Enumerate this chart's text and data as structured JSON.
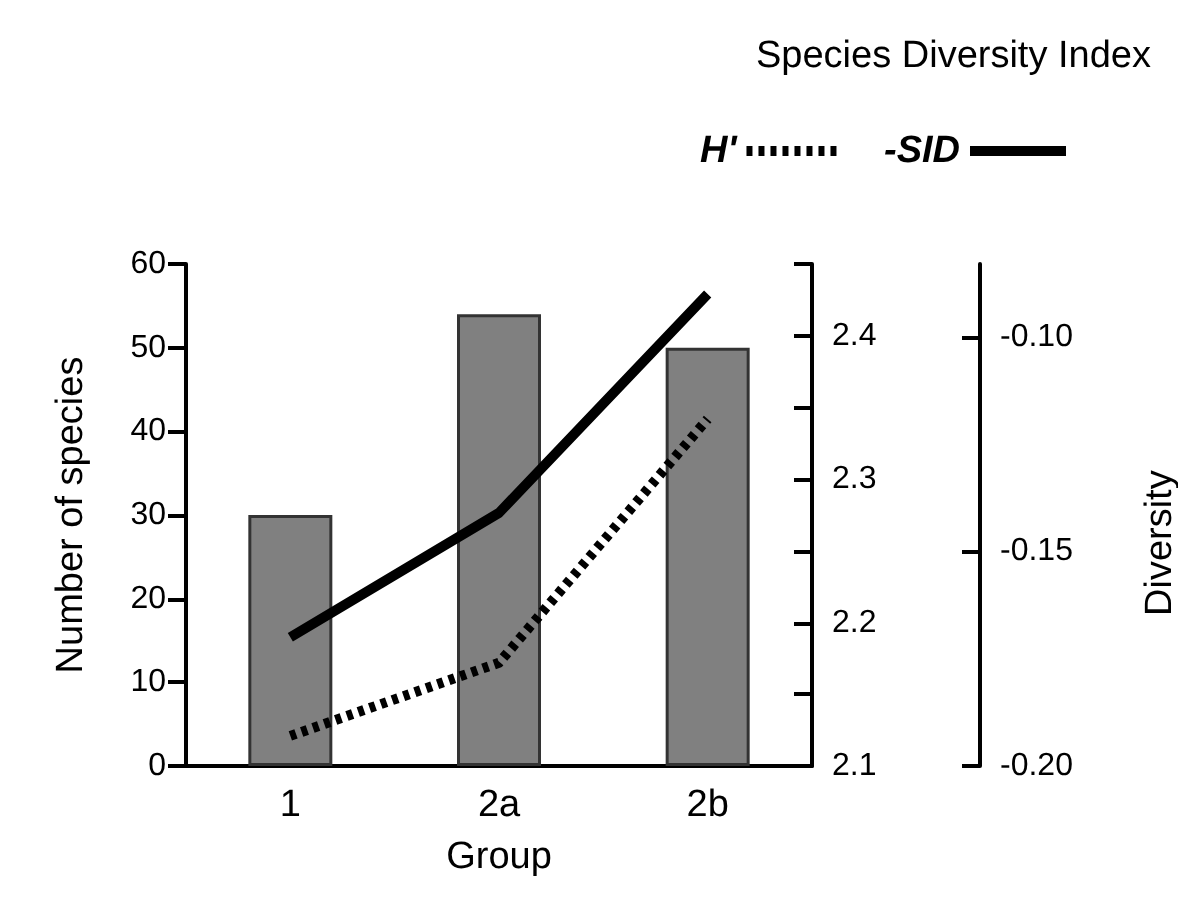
{
  "chart_data": {
    "type": "bar",
    "categories": [
      "1",
      "2a",
      "2b"
    ],
    "xlabel": "Group",
    "ylabel": "Number of species",
    "legend_title": "Species Diversity Index",
    "annotations": [
      "Diversity"
    ],
    "ylim": [
      0,
      60
    ],
    "yticks": [
      0,
      10,
      20,
      30,
      40,
      50,
      60
    ],
    "y2lim": [
      2.1,
      2.45
    ],
    "y2ticks": [
      2.1,
      {
        "value": 2.15,
        "label": null
      },
      2.2,
      {
        "value": 2.25,
        "label": null
      },
      2.3,
      {
        "value": 2.35,
        "label": null
      },
      2.4,
      {
        "value": 2.45,
        "label": null
      }
    ],
    "y3lim": [
      -0.2,
      -0.083
    ],
    "y3ticks": [
      {
        "value": -0.2,
        "label": "-0.20"
      },
      {
        "value": -0.15,
        "label": "-0.15"
      },
      {
        "value": -0.1,
        "label": "-0.10"
      }
    ],
    "grid": false,
    "legend": "top right",
    "marker": "none",
    "series": [
      {
        "color": "#808080",
        "values": [
          30,
          54,
          50
        ]
      },
      {
        "type": "line",
        "name": "H'",
        "axis": "y2",
        "color": "#000000",
        "line_style": "dotted",
        "values": [
          2.121,
          2.172,
          2.342
        ]
      },
      {
        "type": "line",
        "name": "-SID",
        "axis": "y3",
        "color": "#000000",
        "line_style": "solid",
        "values": [
          -0.17,
          -0.141,
          -0.09
        ]
      }
    ]
  }
}
